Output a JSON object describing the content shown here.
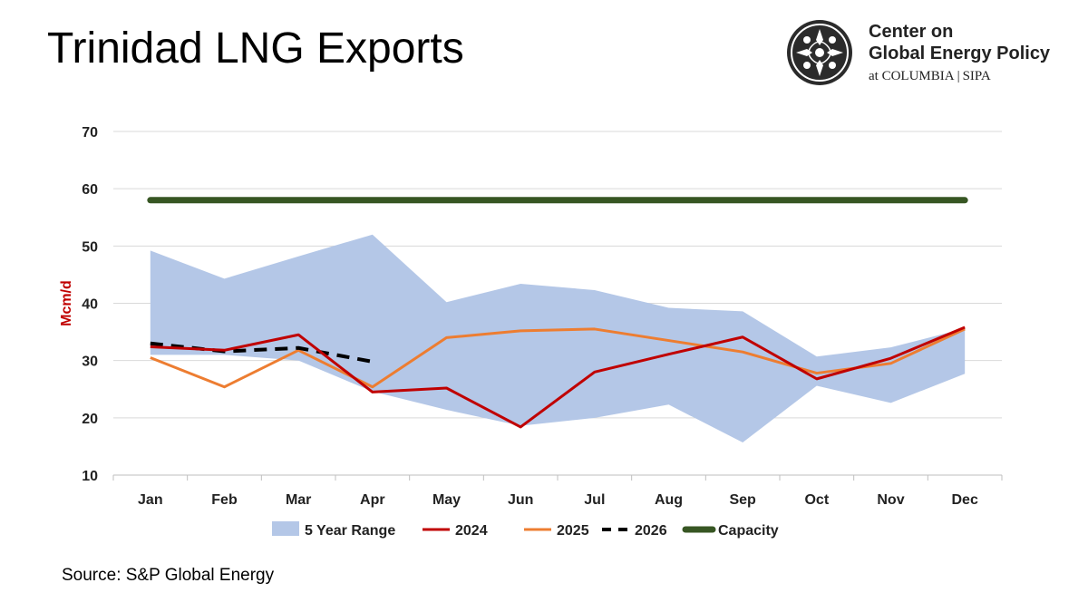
{
  "header": {
    "title": "Trinidad LNG Exports"
  },
  "logo": {
    "line1": "Center on",
    "line2": "Global Energy Policy",
    "line3_left": "at COLUMBIA",
    "line3_sep": "|",
    "line3_right": "SIPA",
    "icon": "columbia-sipa-crown-icon"
  },
  "footer": {
    "source": "Source: S&P Global Energy"
  },
  "chart_data": {
    "type": "line",
    "title": "Trinidad LNG Exports",
    "xlabel": "",
    "ylabel": "Mcm/d",
    "categories": [
      "Jan",
      "Feb",
      "Mar",
      "Apr",
      "May",
      "Jun",
      "Jul",
      "Aug",
      "Sep",
      "Oct",
      "Nov",
      "Dec"
    ],
    "ylim": [
      10,
      70
    ],
    "yticks": [
      10,
      20,
      30,
      40,
      50,
      60,
      70
    ],
    "grid": true,
    "legend_position": "bottom",
    "range": {
      "name": "5 Year Range",
      "color": "#b4c7e7",
      "upper": [
        49.2,
        44.3,
        48.2,
        52.0,
        40.2,
        43.4,
        42.3,
        39.2,
        38.6,
        30.7,
        32.3,
        35.6
      ],
      "lower": [
        31.0,
        31.0,
        30.0,
        24.6,
        21.4,
        18.6,
        20.0,
        22.3,
        15.7,
        25.6,
        22.6,
        27.7
      ]
    },
    "series": [
      {
        "name": "2024",
        "color": "#c00000",
        "style": "solid",
        "values": [
          32.4,
          31.8,
          34.5,
          24.5,
          25.2,
          18.4,
          28.0,
          31.1,
          34.1,
          26.8,
          30.4,
          35.8
        ]
      },
      {
        "name": "2025",
        "color": "#ed7d31",
        "style": "solid",
        "values": [
          30.5,
          25.4,
          31.8,
          25.4,
          34.0,
          35.2,
          35.5,
          33.5,
          31.5,
          27.8,
          29.5,
          35.5
        ]
      },
      {
        "name": "2026",
        "color": "#000000",
        "style": "dashed",
        "values": [
          33.0,
          31.6,
          32.2,
          29.8,
          null,
          null,
          null,
          null,
          null,
          null,
          null,
          null
        ]
      },
      {
        "name": "Capacity",
        "color": "#375623",
        "style": "solid",
        "values": [
          58,
          58,
          58,
          58,
          58,
          58,
          58,
          58,
          58,
          58,
          58,
          58
        ]
      }
    ]
  }
}
